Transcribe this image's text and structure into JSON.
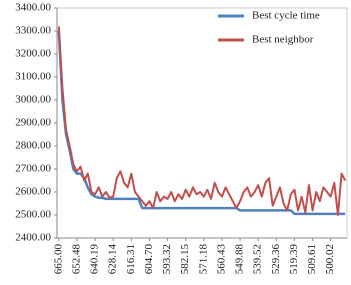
{
  "chart_data": {
    "type": "line",
    "categories": [
      "665.00",
      null,
      null,
      null,
      null,
      "652.48",
      null,
      null,
      null,
      null,
      "640.19",
      null,
      null,
      null,
      null,
      "628.14",
      null,
      null,
      null,
      null,
      "616.31",
      null,
      null,
      null,
      null,
      "604.70",
      null,
      null,
      null,
      null,
      "593.32",
      null,
      null,
      null,
      null,
      "582.15",
      null,
      null,
      null,
      null,
      "571.18",
      null,
      null,
      null,
      null,
      "560.43",
      null,
      null,
      null,
      null,
      "549.88",
      null,
      null,
      null,
      null,
      "539.52",
      null,
      null,
      null,
      null,
      "529.36",
      null,
      null,
      null,
      null,
      "519.39",
      null,
      null,
      null,
      null,
      "509.61",
      null,
      null,
      null,
      null,
      "500.02",
      null,
      null,
      null,
      null
    ],
    "series": [
      {
        "name": "Best cycle time",
        "color": "#4f81bd",
        "values": [
          3300,
          3000,
          2850,
          2780,
          2700,
          2680,
          2680,
          2660,
          2620,
          2590,
          2580,
          2575,
          2575,
          2570,
          2570,
          2570,
          2570,
          2570,
          2570,
          2570,
          2570,
          2570,
          2570,
          2530,
          2530,
          2530,
          2530,
          2530,
          2530,
          2530,
          2530,
          2530,
          2530,
          2530,
          2530,
          2530,
          2530,
          2530,
          2530,
          2530,
          2530,
          2530,
          2530,
          2530,
          2530,
          2530,
          2530,
          2530,
          2530,
          2530,
          2520,
          2520,
          2520,
          2520,
          2520,
          2520,
          2520,
          2520,
          2520,
          2520,
          2520,
          2520,
          2520,
          2520,
          2520,
          2505,
          2505,
          2505,
          2505,
          2505,
          2505,
          2505,
          2505,
          2505,
          2505,
          2505,
          2505,
          2505,
          2505,
          2505
        ]
      },
      {
        "name": "Best neighbor",
        "color": "#c0504d",
        "values": [
          3320,
          3050,
          2870,
          2800,
          2720,
          2690,
          2710,
          2650,
          2680,
          2600,
          2590,
          2620,
          2580,
          2600,
          2575,
          2580,
          2660,
          2690,
          2640,
          2620,
          2680,
          2600,
          2580,
          2560,
          2540,
          2560,
          2530,
          2600,
          2560,
          2580,
          2570,
          2600,
          2560,
          2590,
          2570,
          2610,
          2580,
          2620,
          2590,
          2600,
          2580,
          2610,
          2570,
          2640,
          2600,
          2580,
          2620,
          2590,
          2560,
          2530,
          2560,
          2600,
          2620,
          2580,
          2600,
          2630,
          2580,
          2640,
          2660,
          2540,
          2580,
          2620,
          2550,
          2520,
          2590,
          2610,
          2520,
          2580,
          2510,
          2630,
          2520,
          2600,
          2560,
          2620,
          2600,
          2580,
          2640,
          2500,
          2680,
          2650
        ]
      }
    ],
    "ylim": [
      2400,
      3400
    ],
    "yticks": [
      {
        "value": 2400,
        "label": "2400.00"
      },
      {
        "value": 2500,
        "label": "2500.00"
      },
      {
        "value": 2600,
        "label": "2600.00"
      },
      {
        "value": 2700,
        "label": "2700.00"
      },
      {
        "value": 2800,
        "label": "2800.00"
      },
      {
        "value": 2900,
        "label": "2900.00"
      },
      {
        "value": 3000,
        "label": "3000.00"
      },
      {
        "value": 3100,
        "label": "3100.00"
      },
      {
        "value": 3200,
        "label": "3200.00"
      },
      {
        "value": 3300,
        "label": "3300.00"
      },
      {
        "value": 3400,
        "label": "3400.00"
      }
    ],
    "legend": "top-right"
  }
}
